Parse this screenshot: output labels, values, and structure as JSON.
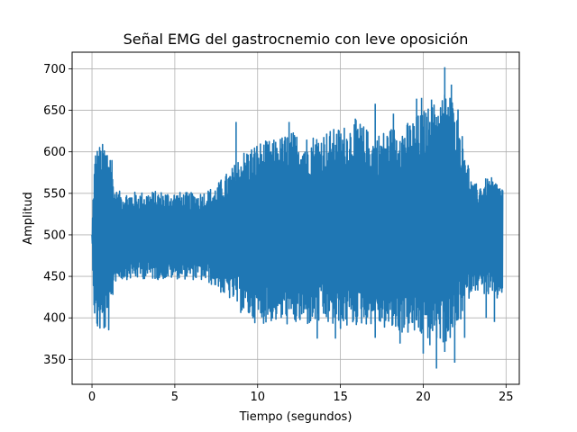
{
  "chart_data": {
    "type": "line",
    "title": "Señal EMG del gastrocnemio con leve oposición",
    "xlabel": "Tiempo (segundos)",
    "ylabel": "Amplitud",
    "xlim": [
      -1.2,
      25.8
    ],
    "ylim": [
      320,
      720
    ],
    "xticks": [
      0,
      5,
      10,
      15,
      20,
      25
    ],
    "yticks": [
      350,
      400,
      450,
      500,
      550,
      600,
      650,
      700
    ],
    "grid": true,
    "line_color": "#1f77b4",
    "series": [
      {
        "x": [
          0.0,
          0.1,
          0.2,
          0.5,
          1.0,
          1.2,
          1.3,
          1.5,
          2.0,
          3.0,
          4.0,
          5.0,
          6.0,
          6.5,
          7.0,
          7.5,
          8.0,
          8.5,
          9.0,
          10.0,
          11.0,
          12.0,
          13.0,
          14.0,
          15.0,
          16.0,
          17.0,
          18.0,
          19.0,
          20.0,
          21.0,
          21.5,
          22.0,
          22.5,
          23.0,
          23.5,
          24.0,
          24.5,
          24.8
        ],
        "upper": [
          500,
          570,
          605,
          610,
          611,
          600,
          560,
          553,
          552,
          552,
          553,
          552,
          551,
          552,
          555,
          560,
          572,
          582,
          600,
          612,
          615,
          625,
          620,
          625,
          630,
          640,
          620,
          630,
          635,
          650,
          665,
          680,
          650,
          610,
          560,
          565,
          570,
          565,
          560
        ],
        "lower": [
          500,
          420,
          384,
          381,
          382,
          400,
          440,
          445,
          446,
          447,
          446,
          447,
          446,
          445,
          442,
          436,
          425,
          420,
          405,
          392,
          395,
          390,
          390,
          392,
          385,
          390,
          392,
          383,
          380,
          375,
          370,
          368,
          380,
          410,
          435,
          430,
          425,
          420,
          430
        ],
        "spikes": [
          [
            8.7,
            636
          ],
          [
            11.9,
            636
          ],
          [
            15.9,
            640
          ],
          [
            17.1,
            658
          ],
          [
            18.2,
            646
          ],
          [
            19.6,
            664
          ],
          [
            19.9,
            665
          ],
          [
            20.5,
            663
          ],
          [
            21.3,
            702
          ],
          [
            21.7,
            681
          ],
          [
            22.1,
            651
          ],
          [
            13.6,
            375
          ],
          [
            14.7,
            375
          ],
          [
            17.1,
            376
          ],
          [
            18.6,
            369
          ],
          [
            20.0,
            357
          ],
          [
            20.4,
            367
          ],
          [
            20.8,
            339
          ],
          [
            21.3,
            359
          ],
          [
            21.9,
            346
          ],
          [
            22.5,
            376
          ],
          [
            23.8,
            400
          ],
          [
            24.3,
            395
          ]
        ]
      }
    ]
  }
}
